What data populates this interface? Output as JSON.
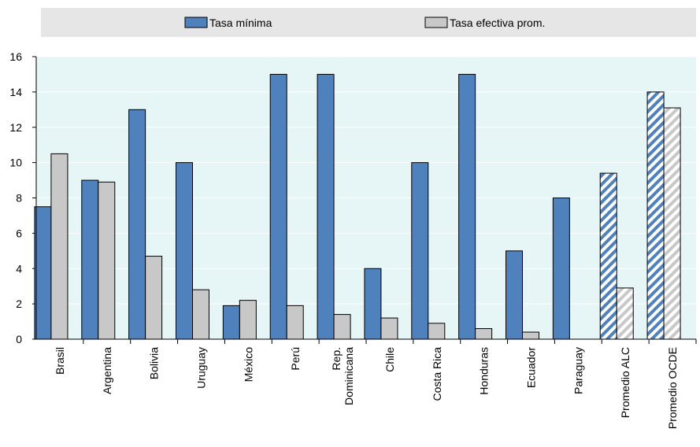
{
  "chart_data": {
    "type": "bar",
    "categories": [
      "Brasil",
      "Argentina",
      "Bolivia",
      "Uruguay",
      "México",
      "Perú",
      "Rep. Dominicana",
      "Chile",
      "Costa Rica",
      "Honduras",
      "Ecuador",
      "Paraguay",
      "Promedio ALC",
      "Promedio OCDE"
    ],
    "series": [
      {
        "name": "Tasa mínima",
        "color": "#4f81bd",
        "values": [
          7.5,
          9,
          13,
          10,
          1.9,
          15,
          15,
          4,
          10,
          15,
          5,
          8,
          9.4,
          14
        ]
      },
      {
        "name": "Tasa efectiva prom.",
        "color": "#c8c8c8",
        "values": [
          10.5,
          8.9,
          4.7,
          2.8,
          2.2,
          1.9,
          1.4,
          1.2,
          0.9,
          0.6,
          0.4,
          null,
          2.9,
          13.1
        ]
      }
    ],
    "hatched_categories": [
      "Promedio ALC",
      "Promedio OCDE"
    ],
    "ylim": [
      0,
      16
    ],
    "yticks": [
      "0",
      "2",
      "4",
      "6",
      "8",
      "10",
      "12",
      "14",
      "16"
    ],
    "legend_position": "top",
    "plot_background": "#e6f5f5",
    "title": "",
    "xlabel": "",
    "ylabel": ""
  }
}
